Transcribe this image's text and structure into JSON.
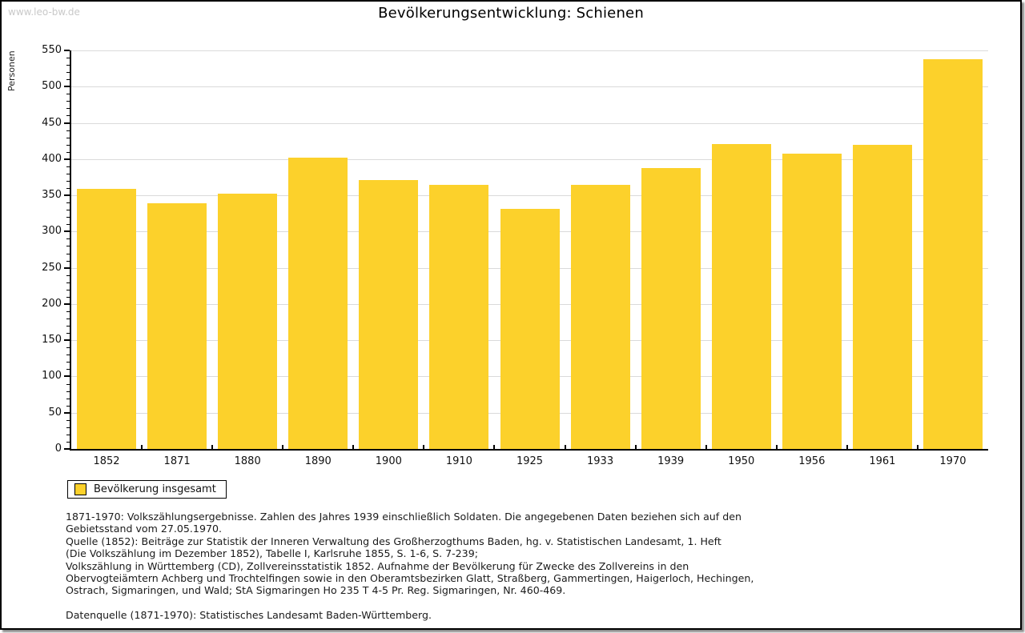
{
  "watermark": "www.leo-bw.de",
  "title": "Bevölkerungsentwicklung: Schienen",
  "chart_data": {
    "type": "bar",
    "title": "Bevölkerungsentwicklung: Schienen",
    "categories": [
      "1852",
      "1871",
      "1880",
      "1890",
      "1900",
      "1910",
      "1925",
      "1933",
      "1939",
      "1950",
      "1956",
      "1961",
      "1970"
    ],
    "values": [
      359,
      339,
      352,
      402,
      371,
      364,
      331,
      365,
      388,
      421,
      408,
      420,
      538
    ],
    "xlabel": "",
    "ylabel": "Personen",
    "ylim": [
      0,
      550
    ],
    "ytick_step": 50,
    "ytick_minor_step": 10,
    "grid": true,
    "bar_color": "#fcd12b",
    "gridline_color": "#dadada",
    "legend_entries": [
      "Bevölkerung insgesamt"
    ],
    "legend_position": "bottom-left"
  },
  "legend": {
    "label": "Bevölkerung insgesamt",
    "swatch_color": "#fcd12b"
  },
  "notes": {
    "paragraphs": [
      [
        "1871-1970: Volkszählungsergebnisse. Zahlen des Jahres 1939 einschließlich Soldaten. Die angegebenen Daten beziehen sich auf den",
        "Gebietsstand vom 27.05.1970.",
        "Quelle (1852): Beiträge zur Statistik der Inneren Verwaltung des Großherzogthums Baden, hg. v. Statistischen Landesamt, 1. Heft",
        "(Die Volkszählung im Dezember 1852), Tabelle I, Karlsruhe 1855, S. 1-6, S. 7-239;",
        "Volkszählung in Württemberg (CD), Zollvereinsstatistik 1852. Aufnahme der Bevölkerung für Zwecke des Zollvereins in den",
        "Obervogteiämtern Achberg und Trochtelfingen sowie in den Oberamtsbezirken Glatt, Straßberg, Gammertingen, Haigerloch, Hechingen,",
        "Ostrach, Sigmaringen, und Wald; StA Sigmaringen Ho 235 T 4-5 Pr. Reg. Sigmaringen, Nr. 460-469."
      ],
      [
        "Datenquelle (1871-1970): Statistisches Landesamt Baden-Württemberg."
      ]
    ]
  }
}
